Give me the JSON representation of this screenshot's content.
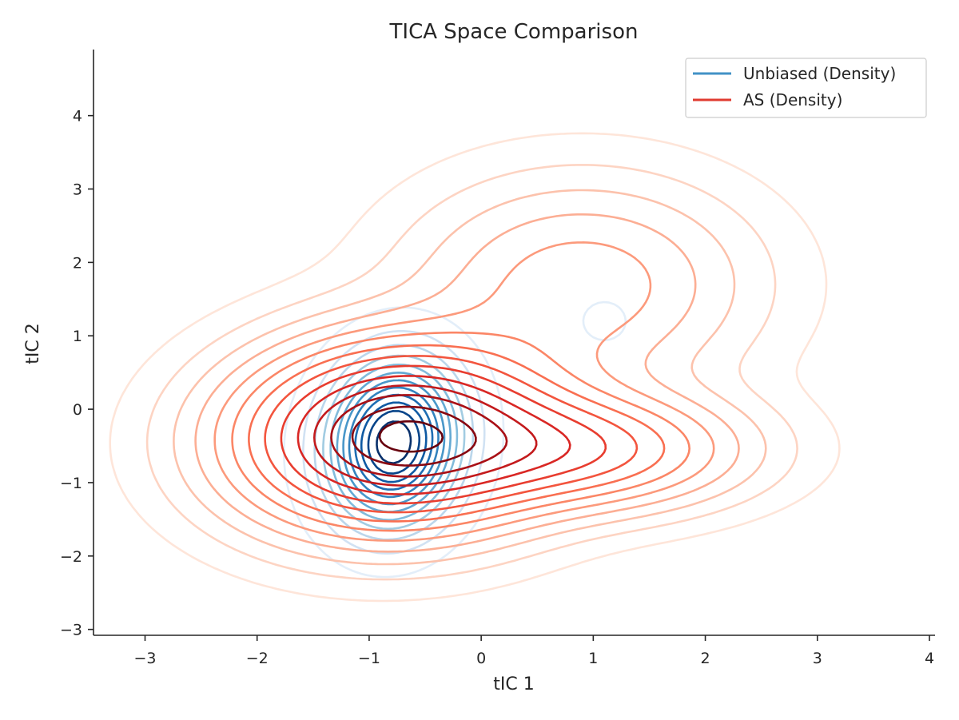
{
  "chart_data": {
    "type": "contour",
    "title": "TICA Space Comparison",
    "xlabel": "tIC 1",
    "ylabel": "tIC 2",
    "xlim": [
      -3.46,
      4.05
    ],
    "ylim": [
      -3.08,
      4.9
    ],
    "xticks": [
      -3,
      -2,
      -1,
      0,
      1,
      2,
      3,
      4
    ],
    "yticks": [
      -3,
      -2,
      -1,
      0,
      1,
      2,
      3,
      4
    ],
    "xtick_labels": [
      "−3",
      "−2",
      "−1",
      "0",
      "1",
      "2",
      "3",
      "4"
    ],
    "ytick_labels": [
      "−3",
      "−2",
      "−1",
      "0",
      "1",
      "2",
      "3",
      "4"
    ],
    "legend_position": "upper right",
    "grid": false,
    "series": [
      {
        "name": "Unbiased (Density)",
        "color": "#4292c6",
        "colormap": "Blues",
        "components": [
          {
            "weight": 1.0,
            "mean": [
              -0.78,
              -0.45
            ],
            "sx": 0.4,
            "sy": 0.75,
            "rho": 0.08
          },
          {
            "weight": 0.1,
            "mean": [
              1.1,
              1.2
            ],
            "sx": 0.16,
            "sy": 0.22,
            "rho": 0.0
          },
          {
            "weight": 0.05,
            "mean": [
              0.95,
              -0.6
            ],
            "sx": 0.14,
            "sy": 0.14,
            "rho": 0.0
          }
        ],
        "levels": [
          0.05,
          0.13,
          0.21,
          0.29,
          0.37,
          0.45,
          0.53,
          0.61,
          0.69,
          0.77,
          0.85,
          0.93
        ]
      },
      {
        "name": "AS (Density)",
        "color": "#e03b30",
        "colormap": "Reds",
        "components": [
          {
            "weight": 1.0,
            "mean": [
              -0.75,
              -0.35
            ],
            "sx": 0.85,
            "sy": 0.75,
            "rho": 0.05
          },
          {
            "weight": 0.4,
            "mean": [
              0.9,
              -0.55
            ],
            "sx": 0.85,
            "sy": 0.48,
            "rho": 0.0
          },
          {
            "weight": 0.2,
            "mean": [
              0.9,
              1.7
            ],
            "sx": 0.9,
            "sy": 0.85,
            "rho": 0.0
          }
        ],
        "levels": [
          0.01,
          0.03,
          0.06,
          0.1,
          0.15,
          0.21,
          0.28,
          0.36,
          0.45,
          0.55,
          0.65,
          0.75,
          0.86,
          0.96
        ]
      }
    ]
  }
}
